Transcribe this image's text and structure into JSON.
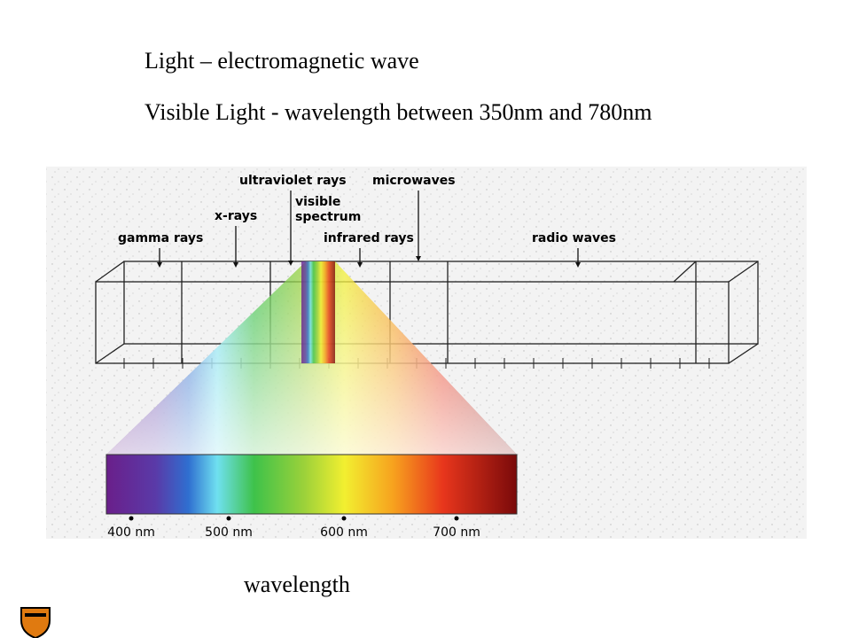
{
  "title_lines": [
    "Light – electromagnetic wave",
    "Visible Light - wavelength between 350nm and 780nm"
  ],
  "diagram": {
    "labels": [
      "ultraviolet rays",
      "microwaves",
      "visible",
      "spectrum",
      "x-rays",
      "gamma rays",
      "infrared rays",
      "radio waves"
    ],
    "scale_labels": [
      "400 nm",
      "500 nm",
      "600 nm",
      "700 nm"
    ]
  },
  "caption": "wavelength"
}
